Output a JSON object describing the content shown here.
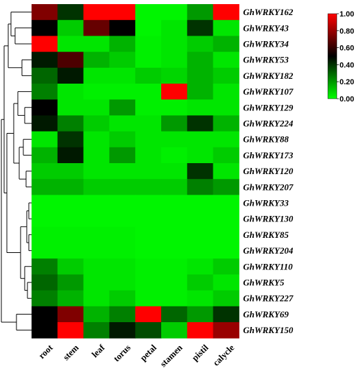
{
  "chart_data": {
    "type": "heatmap",
    "title": "",
    "xlabel": "",
    "ylabel": "",
    "columns": [
      "root",
      "stem",
      "leaf",
      "torus",
      "petal",
      "stamen",
      "pistil",
      "calycle"
    ],
    "rows": [
      "GhWRKY162",
      "GhWRKY43",
      "GhWRKY34",
      "GhWRKY53",
      "GhWRKY182",
      "GhWRKY107",
      "GhWRKY129",
      "GhWRKY224",
      "GhWRKY88",
      "GhWRKY173",
      "GhWRKY120",
      "GhWRKY207",
      "GhWRKY33",
      "GhWRKY130",
      "GhWRKY85",
      "GhWRKY204",
      "GhWRKY110",
      "GhWRKY5",
      "GhWRKY227",
      "GhWRKY69",
      "GhWRKY150"
    ],
    "values": [
      [
        0.75,
        0.4,
        1.0,
        1.0,
        0.02,
        0.02,
        0.2,
        1.0
      ],
      [
        0.5,
        0.1,
        0.7,
        0.5,
        0.02,
        0.05,
        0.4,
        0.05
      ],
      [
        1.0,
        0.05,
        0.05,
        0.15,
        0.03,
        0.05,
        0.1,
        0.15
      ],
      [
        0.45,
        0.65,
        0.15,
        0.1,
        0.03,
        0.05,
        0.15,
        0.05
      ],
      [
        0.3,
        0.45,
        0.05,
        0.05,
        0.1,
        0.08,
        0.15,
        0.1
      ],
      [
        0.25,
        0.05,
        0.03,
        0.03,
        0.03,
        1.0,
        0.15,
        0.05
      ],
      [
        0.5,
        0.05,
        0.05,
        0.2,
        0.03,
        0.03,
        0.05,
        0.05
      ],
      [
        0.45,
        0.25,
        0.1,
        0.05,
        0.05,
        0.2,
        0.4,
        0.15
      ],
      [
        0.05,
        0.4,
        0.05,
        0.1,
        0.05,
        0.05,
        0.05,
        0.05
      ],
      [
        0.15,
        0.45,
        0.05,
        0.2,
        0.05,
        0.03,
        0.05,
        0.1
      ],
      [
        0.1,
        0.1,
        0.05,
        0.05,
        0.05,
        0.05,
        0.4,
        0.05
      ],
      [
        0.15,
        0.15,
        0.1,
        0.1,
        0.1,
        0.1,
        0.25,
        0.2
      ],
      [
        0.02,
        0.02,
        0.02,
        0.02,
        0.02,
        0.02,
        0.02,
        0.02
      ],
      [
        0.02,
        0.02,
        0.02,
        0.02,
        0.02,
        0.02,
        0.02,
        0.02
      ],
      [
        0.03,
        0.03,
        0.03,
        0.03,
        0.02,
        0.02,
        0.02,
        0.02
      ],
      [
        0.03,
        0.03,
        0.03,
        0.03,
        0.02,
        0.02,
        0.02,
        0.02
      ],
      [
        0.25,
        0.1,
        0.05,
        0.05,
        0.03,
        0.03,
        0.05,
        0.1
      ],
      [
        0.3,
        0.2,
        0.05,
        0.05,
        0.03,
        0.03,
        0.1,
        0.05
      ],
      [
        0.25,
        0.15,
        0.05,
        0.1,
        0.03,
        0.03,
        0.05,
        0.1
      ],
      [
        0.5,
        0.75,
        0.15,
        0.25,
        1.0,
        0.3,
        0.2,
        0.4
      ],
      [
        0.5,
        1.0,
        0.25,
        0.45,
        0.35,
        0.1,
        1.0,
        0.8
      ]
    ],
    "colorbar": {
      "min": 0.0,
      "max": 1.0,
      "ticks": [
        "1.00",
        "0.80",
        "0.60",
        "0.40",
        "0.20",
        "0.00"
      ],
      "colors": {
        "low": "#00ff00",
        "mid": "#000000",
        "high": "#ff0000"
      }
    },
    "dendrogram": "row clustering tree on left side",
    "legend_placement": "top-right"
  }
}
